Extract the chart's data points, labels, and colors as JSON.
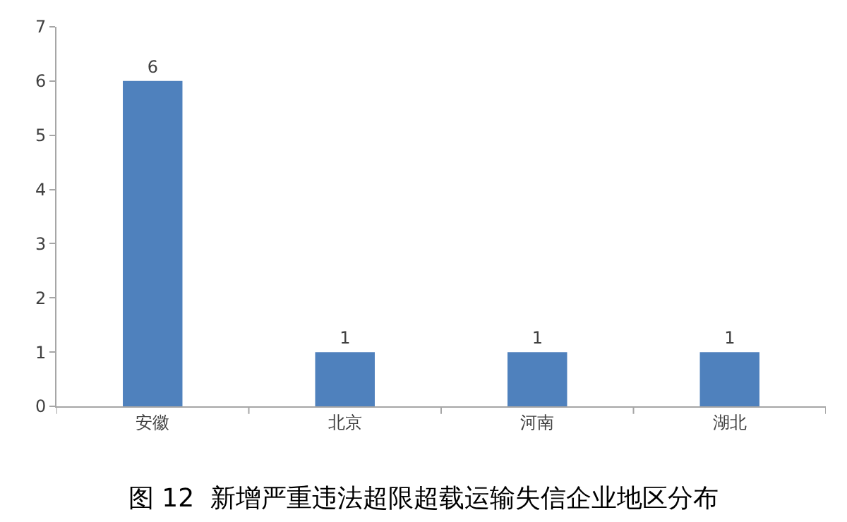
{
  "chart_data": {
    "type": "bar",
    "title": "图 12  新增严重违法超限超载运输失信企业地区分布",
    "categories": [
      "安徽",
      "北京",
      "河南",
      "湖北"
    ],
    "values": [
      6,
      1,
      1,
      1
    ],
    "color": "#4f81bd",
    "ylim": [
      0,
      7
    ],
    "yticks": [
      0,
      1,
      2,
      3,
      4,
      5,
      6,
      7
    ],
    "data_labels": true
  }
}
